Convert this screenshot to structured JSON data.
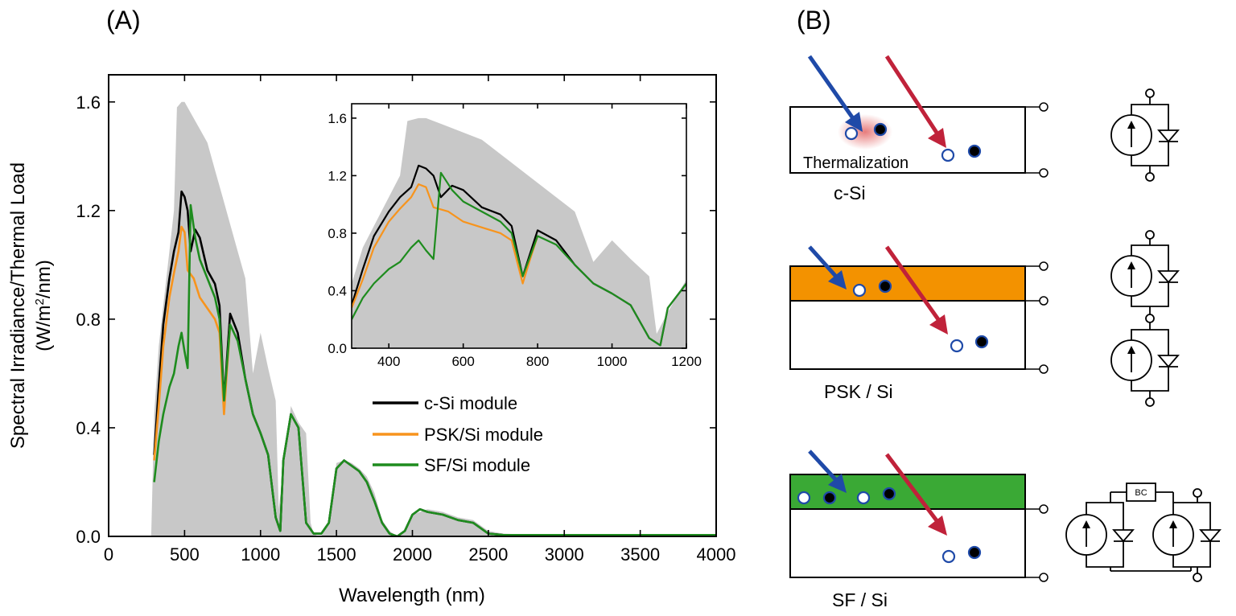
{
  "panels": {
    "a": "(A)",
    "b": "(B)"
  },
  "chart_data": {
    "type": "area",
    "x_label": "Wavelength (nm)",
    "y_label_line1": "Spectral Irradiance/Thermal Load",
    "y_label_line2_pre": "(W/m",
    "y_label_line2_sup": "2",
    "y_label_line2_post": "/nm)",
    "xlim": [
      0,
      4000
    ],
    "ylim": [
      0,
      1.7
    ],
    "x_ticks": [
      "0",
      "500",
      "1000",
      "1500",
      "2000",
      "2500",
      "3000",
      "3500",
      "4000"
    ],
    "y_ticks": [
      "0.0",
      "0.4",
      "0.8",
      "1.2",
      "1.6"
    ],
    "colors": {
      "spectrum": "#c8c8c8",
      "csi": "#000000",
      "psk": "#f7941d",
      "sf": "#1e8c1e"
    },
    "series": [
      {
        "name": "c-Si module",
        "color": "#000000",
        "x": [
          300,
          330,
          360,
          400,
          430,
          460,
          480,
          500,
          520,
          540,
          570,
          600,
          650,
          700,
          730,
          760,
          800,
          850,
          900,
          950,
          1000,
          1050,
          1100,
          1130,
          1150,
          1200,
          1250,
          1300,
          1350,
          1400,
          1450,
          1500,
          1550,
          1600,
          1650,
          1700,
          1750,
          1800,
          1850,
          1900,
          1950,
          2000,
          2050,
          2100,
          2200,
          2300,
          2400,
          2500,
          2600,
          2800,
          3000,
          3500,
          4000
        ],
        "y": [
          0.3,
          0.55,
          0.78,
          0.95,
          1.05,
          1.12,
          1.27,
          1.25,
          1.2,
          1.05,
          1.13,
          1.1,
          0.98,
          0.93,
          0.85,
          0.5,
          0.82,
          0.75,
          0.58,
          0.45,
          0.38,
          0.3,
          0.07,
          0.02,
          0.28,
          0.45,
          0.4,
          0.05,
          0.01,
          0.01,
          0.05,
          0.25,
          0.28,
          0.26,
          0.24,
          0.2,
          0.13,
          0.05,
          0.01,
          0.0,
          0.02,
          0.08,
          0.1,
          0.09,
          0.08,
          0.06,
          0.05,
          0.01,
          0.005,
          0.005,
          0.005,
          0.005,
          0.005
        ]
      },
      {
        "name": "PSK/Si module",
        "color": "#f7941d",
        "x": [
          300,
          330,
          360,
          400,
          430,
          460,
          480,
          500,
          520,
          560,
          600,
          650,
          700,
          730,
          760,
          780,
          800
        ],
        "y": [
          0.28,
          0.48,
          0.7,
          0.88,
          0.97,
          1.05,
          1.14,
          1.12,
          0.98,
          0.95,
          0.88,
          0.84,
          0.8,
          0.75,
          0.45,
          0.62,
          0.78
        ]
      },
      {
        "name": "SF/Si module",
        "color": "#1e8c1e",
        "x": [
          300,
          330,
          360,
          400,
          430,
          460,
          480,
          500,
          520,
          540,
          570,
          600,
          650,
          700,
          730,
          760,
          800,
          850,
          900,
          950,
          1000,
          1050,
          1100,
          1130,
          1150,
          1200,
          1250,
          1300,
          1350,
          1400,
          1450,
          1500,
          1550,
          1600,
          1650,
          1700,
          1750,
          1800,
          1850,
          1900,
          1950,
          2000,
          2050,
          2100,
          2200,
          2300,
          2400,
          2500,
          2600,
          2800,
          3000,
          3500,
          4000
        ],
        "y": [
          0.2,
          0.35,
          0.45,
          0.55,
          0.6,
          0.7,
          0.75,
          0.68,
          0.62,
          1.22,
          1.1,
          1.02,
          0.95,
          0.88,
          0.8,
          0.5,
          0.78,
          0.72,
          0.58,
          0.45,
          0.38,
          0.3,
          0.07,
          0.02,
          0.28,
          0.45,
          0.4,
          0.05,
          0.01,
          0.01,
          0.05,
          0.25,
          0.28,
          0.26,
          0.24,
          0.2,
          0.13,
          0.05,
          0.01,
          0.0,
          0.02,
          0.08,
          0.1,
          0.09,
          0.08,
          0.06,
          0.05,
          0.01,
          0.005,
          0.005,
          0.005,
          0.005,
          0.005
        ]
      }
    ],
    "reference_spectrum": {
      "x": [
        280,
        300,
        330,
        360,
        400,
        430,
        450,
        480,
        500,
        550,
        600,
        650,
        700,
        750,
        800,
        850,
        900,
        950,
        1000,
        1050,
        1100,
        1120,
        1150,
        1200,
        1250,
        1300,
        1330,
        1350,
        1380,
        1400,
        1450,
        1500,
        1550,
        1600,
        1650,
        1700,
        1750,
        1800,
        1850,
        1900,
        1950,
        2000,
        2100,
        2200,
        2300,
        2400,
        2500,
        2600,
        2800,
        3000,
        3500,
        4000
      ],
      "y": [
        0.0,
        0.45,
        0.7,
        0.85,
        1.05,
        1.2,
        1.58,
        1.6,
        1.6,
        1.55,
        1.5,
        1.45,
        1.35,
        1.25,
        1.15,
        1.05,
        0.95,
        0.6,
        0.75,
        0.62,
        0.5,
        0.1,
        0.25,
        0.48,
        0.42,
        0.38,
        0.05,
        0.01,
        0.0,
        0.0,
        0.05,
        0.27,
        0.28,
        0.27,
        0.25,
        0.22,
        0.16,
        0.06,
        0.02,
        0.0,
        0.02,
        0.08,
        0.1,
        0.09,
        0.07,
        0.06,
        0.02,
        0.01,
        0.005,
        0.005,
        0.005,
        0.005
      ]
    },
    "legend": [
      "c-Si module",
      "PSK/Si module",
      "SF/Si module"
    ],
    "inset": {
      "xlim": [
        300,
        1200
      ],
      "ylim": [
        0,
        1.7
      ],
      "x_ticks": [
        "400",
        "600",
        "800",
        "1000",
        "1200"
      ],
      "y_ticks": [
        "0.0",
        "0.4",
        "0.8",
        "1.2",
        "1.6"
      ]
    }
  },
  "diagram": {
    "csi_label": "c-Si",
    "psk_label": "PSK / Si",
    "sf_label": "SF / Si",
    "thermalization_label": "Thermalization",
    "bc_label": "BC"
  }
}
